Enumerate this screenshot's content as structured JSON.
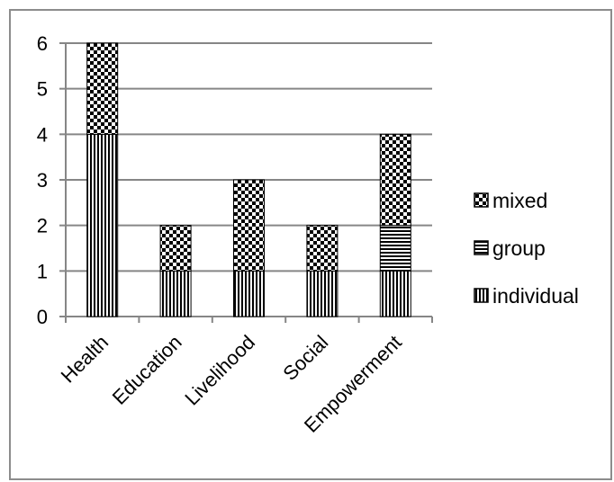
{
  "chart_data": {
    "type": "bar",
    "stacked": true,
    "title": "",
    "xlabel": "",
    "ylabel": "",
    "categories": [
      "Health",
      "Education",
      "Livelihood",
      "Social",
      "Empowerment"
    ],
    "series": [
      {
        "name": "individual",
        "values": [
          4,
          1,
          1,
          1,
          1
        ],
        "pattern": "vertical-lines"
      },
      {
        "name": "group",
        "values": [
          0,
          0,
          0,
          0,
          1
        ],
        "pattern": "horizontal-lines"
      },
      {
        "name": "mixed",
        "values": [
          2,
          1,
          2,
          1,
          2
        ],
        "pattern": "checkerboard"
      }
    ],
    "ylim": [
      0,
      6
    ],
    "yticks": [
      "0",
      "1",
      "2",
      "3",
      "4",
      "5",
      "6"
    ],
    "grid": true,
    "legend_position": "right",
    "legend_order": [
      "mixed",
      "group",
      "individual"
    ],
    "colors": {
      "ink": "#000000",
      "grid": "#868686",
      "axis": "#868686",
      "border": "#8c8c8c",
      "background": "#ffffff"
    }
  }
}
